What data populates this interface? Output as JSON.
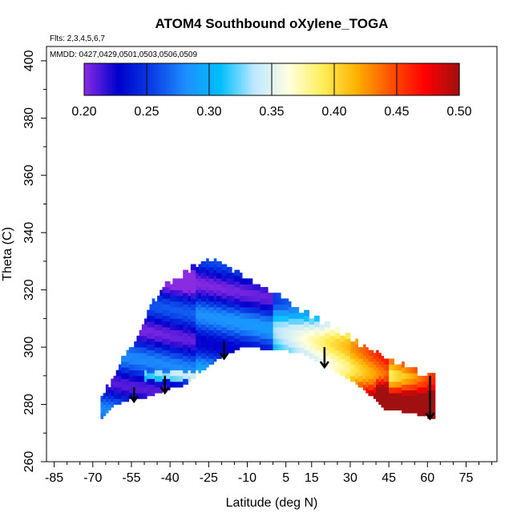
{
  "chart_data": {
    "type": "heatmap",
    "title": "ATOM4 Southbound oXylene_TOGA",
    "flights_note": "Flts: 2,3,4,5,6,7",
    "dates_note": "MMDD: 0427,0429,0501,0503,0506,0509",
    "xlabel": "Latitude (deg N)",
    "ylabel": "Theta (C)",
    "xlim": [
      -88,
      87
    ],
    "ylim": [
      260,
      405
    ],
    "x_ticks": [
      -85,
      -70,
      -55,
      -40,
      -25,
      -10,
      5,
      15,
      30,
      45,
      60,
      75
    ],
    "y_ticks": [
      260,
      280,
      300,
      320,
      340,
      360,
      380,
      400
    ],
    "colorbar": {
      "ticks": [
        0.2,
        0.25,
        0.3,
        0.35,
        0.4,
        0.45,
        0.5
      ],
      "tick_labels": [
        "0.20",
        "0.25",
        "0.30",
        "0.35",
        "0.40",
        "0.45",
        "0.50"
      ],
      "colors": [
        "#8a2be2",
        "#0000cd",
        "#0a3ee6",
        "#1e90ff",
        "#00bfff",
        "#bfe8ff",
        "#ffffe0",
        "#ffee58",
        "#ffb000",
        "#ff5000",
        "#ff0000",
        "#a01010"
      ]
    },
    "coverage_upper": [
      [
        -67,
        282
      ],
      [
        -62,
        288
      ],
      [
        -58,
        296
      ],
      [
        -52,
        304
      ],
      [
        -48,
        313
      ],
      [
        -43,
        320
      ],
      [
        -37,
        324
      ],
      [
        -30,
        328
      ],
      [
        -25,
        330
      ],
      [
        -20,
        329
      ],
      [
        -14,
        326
      ],
      [
        -8,
        323
      ],
      [
        -2,
        319
      ],
      [
        5,
        316
      ],
      [
        12,
        312
      ],
      [
        20,
        308
      ],
      [
        28,
        304
      ],
      [
        35,
        300
      ],
      [
        42,
        297
      ],
      [
        49,
        294
      ],
      [
        56,
        291
      ],
      [
        63,
        289
      ]
    ],
    "coverage_lower": [
      [
        -67,
        275
      ],
      [
        -62,
        280
      ],
      [
        -56,
        282
      ],
      [
        -52,
        282
      ],
      [
        -46,
        284
      ],
      [
        -40,
        286
      ],
      [
        -35,
        287
      ],
      [
        -30,
        290
      ],
      [
        -25,
        294
      ],
      [
        -20,
        297
      ],
      [
        -15,
        299
      ],
      [
        -10,
        301
      ],
      [
        -5,
        300
      ],
      [
        0,
        299
      ],
      [
        6,
        299
      ],
      [
        12,
        298
      ],
      [
        18,
        295
      ],
      [
        24,
        292
      ],
      [
        30,
        289
      ],
      [
        36,
        285
      ],
      [
        41,
        281
      ],
      [
        44,
        278
      ],
      [
        50,
        278
      ],
      [
        56,
        277
      ],
      [
        63,
        275
      ]
    ],
    "profile_markers": [
      {
        "lat": -54,
        "theta_top": 286,
        "theta_bottom": 281
      },
      {
        "lat": -42,
        "theta_top": 290,
        "theta_bottom": 284
      },
      {
        "lat": -19,
        "theta_top": 302,
        "theta_bottom": 296
      },
      {
        "lat": 20,
        "theta_top": 300,
        "theta_bottom": 293
      },
      {
        "lat": 61,
        "theta_top": 290,
        "theta_bottom": 275
      }
    ]
  }
}
